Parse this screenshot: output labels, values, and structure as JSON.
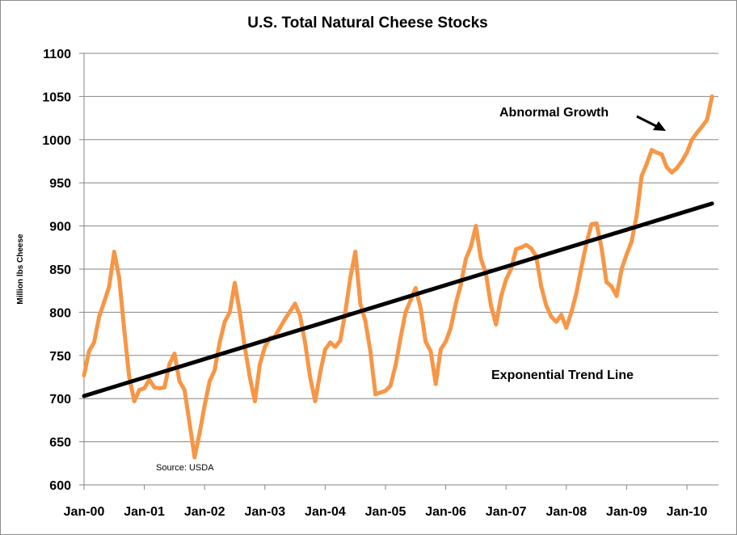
{
  "chart_data": {
    "type": "line",
    "title": "U.S.  Total Natural Cheese Stocks",
    "xlabel": "",
    "ylabel": "Million lbs Cheese",
    "ylim": [
      600,
      1100
    ],
    "yticks": [
      600,
      650,
      700,
      750,
      800,
      850,
      900,
      950,
      1000,
      1050,
      1100
    ],
    "xtick_labels": [
      "Jan-00",
      "Jan-01",
      "Jan-02",
      "Jan-03",
      "Jan-04",
      "Jan-05",
      "Jan-06",
      "Jan-07",
      "Jan-08",
      "Jan-09",
      "Jan-10"
    ],
    "x_start": "Jan-00",
    "x_step": "month",
    "grid": true,
    "series": [
      {
        "name": "Total Natural Cheese Stocks",
        "color": "#F79646",
        "values": [
          727,
          755,
          765,
          795,
          812,
          830,
          870,
          840,
          780,
          725,
          697,
          710,
          712,
          722,
          713,
          712,
          713,
          740,
          752,
          720,
          710,
          672,
          632,
          660,
          692,
          720,
          733,
          765,
          789,
          800,
          834,
          800,
          760,
          725,
          697,
          740,
          760,
          770,
          772,
          782,
          792,
          801,
          810,
          796,
          765,
          725,
          697,
          730,
          757,
          765,
          760,
          767,
          800,
          840,
          870,
          810,
          790,
          755,
          705,
          707,
          709,
          715,
          738,
          770,
          800,
          814,
          828,
          805,
          766,
          755,
          717,
          757,
          766,
          782,
          810,
          832,
          862,
          876,
          900,
          862,
          845,
          808,
          786,
          818,
          838,
          850,
          873,
          875,
          878,
          874,
          865,
          830,
          808,
          795,
          789,
          797,
          782,
          800,
          822,
          852,
          880,
          902,
          903,
          875,
          835,
          830,
          819,
          850,
          867,
          882,
          912,
          958,
          972,
          988,
          985,
          983,
          968,
          962,
          967,
          975,
          985,
          1000,
          1008,
          1015,
          1023,
          1050
        ]
      },
      {
        "name": "Exponential Trend Line",
        "color": "#000000",
        "type": "trend",
        "start_value": 703,
        "end_value": 926
      }
    ],
    "annotations": [
      {
        "text": "Abnormal Growth",
        "arrow": true,
        "points_to": "late 2009 peak"
      },
      {
        "text": "Exponential Trend Line",
        "arrow": false
      },
      {
        "text": "Source: USDA",
        "arrow": false
      }
    ]
  }
}
